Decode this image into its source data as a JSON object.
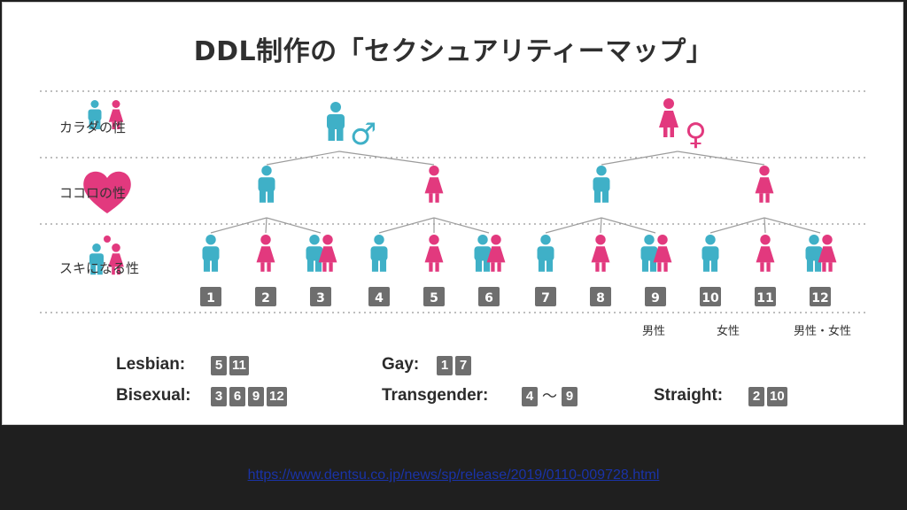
{
  "title": "DDL制作の「セクシュアリティーマップ」",
  "row_labels": [
    "カラダの性",
    "ココロの性",
    "スキになる性"
  ],
  "symbols": {
    "male": "♂",
    "female": "♀"
  },
  "colors": {
    "male": "#3fb0c7",
    "female": "#e2397e",
    "box": "#6e6e6e",
    "dotted": "#a9a9a9",
    "line": "#9c9c9c"
  },
  "figures": [
    {
      "n": "1",
      "type": "male"
    },
    {
      "n": "2",
      "type": "female"
    },
    {
      "n": "3",
      "type": "both"
    },
    {
      "n": "4",
      "type": "male"
    },
    {
      "n": "5",
      "type": "female"
    },
    {
      "n": "6",
      "type": "both"
    },
    {
      "n": "7",
      "type": "male"
    },
    {
      "n": "8",
      "type": "female"
    },
    {
      "n": "9",
      "type": "both"
    },
    {
      "n": "10",
      "type": "male"
    },
    {
      "n": "11",
      "type": "female"
    },
    {
      "n": "12",
      "type": "both"
    }
  ],
  "legend": {
    "male": "男性",
    "female": "女性",
    "both": "男性・女性"
  },
  "categories": {
    "lesbian": {
      "label": "Lesbian:",
      "items": [
        "5",
        "11"
      ]
    },
    "gay": {
      "label": "Gay:",
      "items": [
        "1",
        "7"
      ]
    },
    "bisexual": {
      "label": "Bisexual:",
      "items": [
        "3",
        "6",
        "9",
        "12"
      ]
    },
    "transgender": {
      "label": "Transgender:",
      "from": "4",
      "sep": "〜",
      "to": "9"
    },
    "straight": {
      "label": "Straight:",
      "items": [
        "2",
        "10"
      ]
    }
  },
  "url": "https://www.dentsu.co.jp/news/sp/release/2019/0110-009728.html"
}
